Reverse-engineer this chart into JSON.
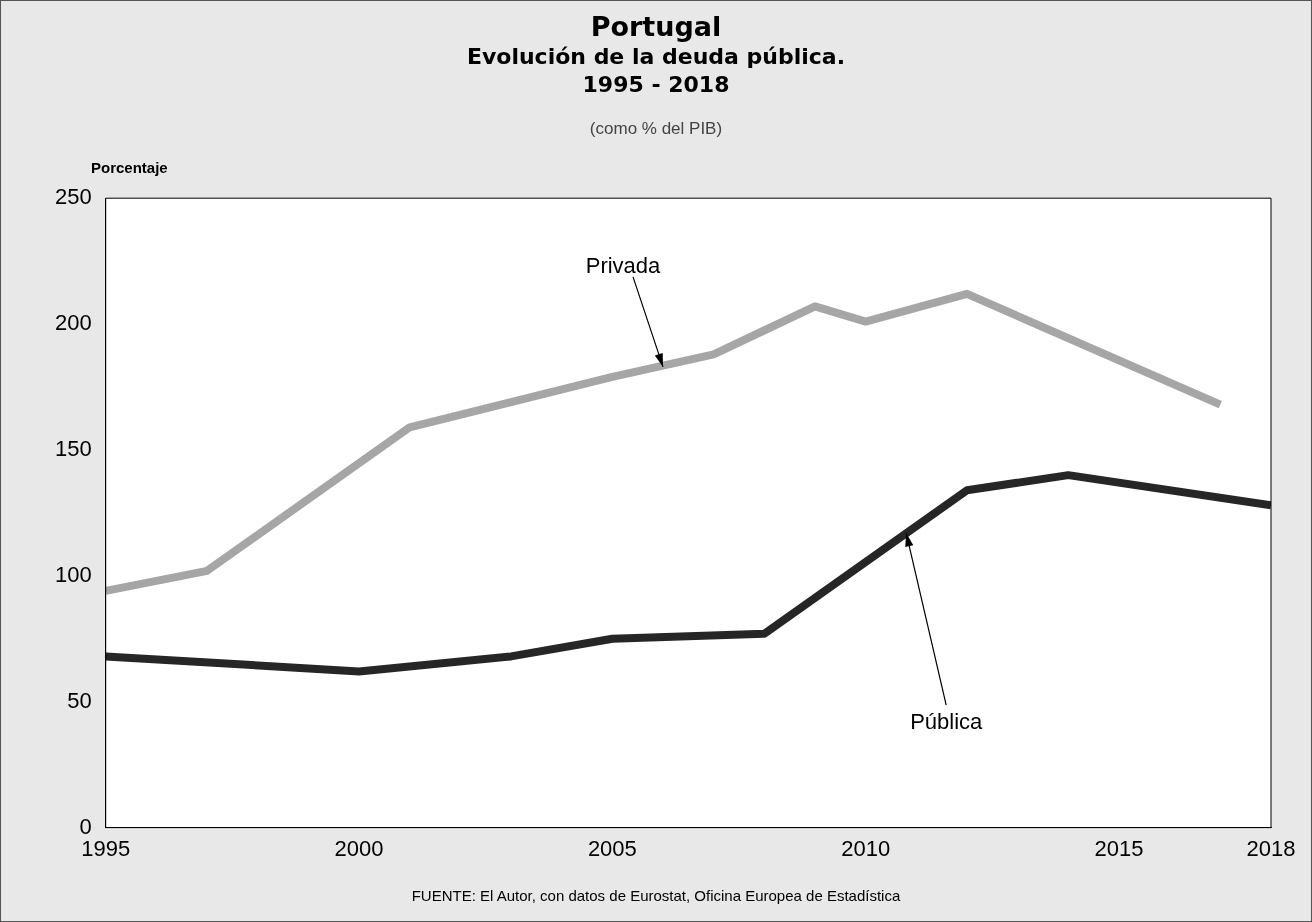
{
  "chart_data": {
    "type": "line",
    "title": "Portugal\nEvolución  de la deuda pública.\n1995 - 2018",
    "subtitle": "(como % del PIB)",
    "ylabel": "Porcentaje",
    "series": [
      {
        "color": "#a6a6a6",
        "x": [
          1995,
          1997,
          2001,
          2005,
          2007,
          2009,
          2010,
          2012,
          2017
        ],
        "values": [
          94,
          102,
          159,
          179,
          188,
          207,
          201,
          212,
          168
        ]
      },
      {
        "color": "#262626",
        "x": [
          1995,
          2000,
          2003,
          2005,
          2008,
          2012,
          2014,
          2018
        ],
        "values": [
          68,
          62,
          68,
          75,
          77,
          134,
          140,
          128
        ]
      }
    ],
    "xlim": [
      1995,
      2018
    ],
    "xticks": [
      1995,
      2000,
      2005,
      2010,
      2015,
      2018
    ],
    "ylim": [
      0,
      250
    ],
    "yticks": [
      0,
      50,
      100,
      150,
      200,
      250
    ],
    "grid": false,
    "legend": false,
    "marker": "none",
    "line_style": "solid",
    "annotations": [
      {
        "text": "Privada",
        "x": 2006,
        "y": 183
      },
      {
        "text": "Pública",
        "x": 2010.8,
        "y": 117
      },
      "FUENTE: El Autor, con datos de Eurostat, Oficina Europea de Estadística"
    ]
  }
}
